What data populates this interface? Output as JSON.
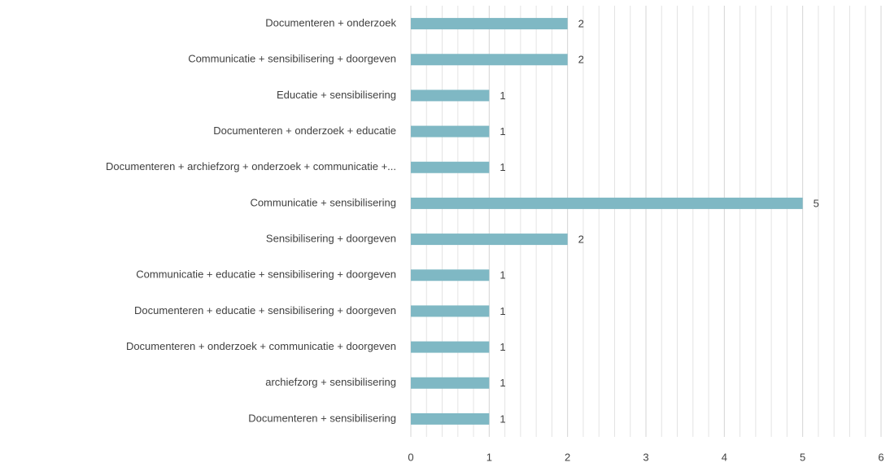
{
  "chart_data": {
    "type": "hbar",
    "categories": [
      "Documenteren + onderzoek",
      "Communicatie + sensibilisering + doorgeven",
      "Educatie + sensibilisering",
      "Documenteren + onderzoek + educatie",
      "Documenteren + archiefzorg + onderzoek + communicatie +...",
      "Communicatie + sensibilisering",
      "Sensibilisering + doorgeven",
      "Communicatie + educatie + sensibilisering + doorgeven",
      "Documenteren + educatie + sensibilisering + doorgeven",
      "Documenteren + onderzoek + communicatie + doorgeven",
      "archiefzorg + sensibilisering",
      "Documenteren + sensibilisering"
    ],
    "values": [
      2,
      2,
      1,
      1,
      1,
      5,
      2,
      1,
      1,
      1,
      1,
      1
    ],
    "color": "#7fb8c4",
    "xlim": [
      0,
      6
    ],
    "xticks": [
      0,
      1,
      2,
      3,
      4,
      5,
      6
    ],
    "xminorticks": [
      0.2,
      0.4,
      0.6,
      0.8,
      1.2,
      1.4,
      1.6,
      1.8,
      2.2,
      2.4,
      2.6,
      2.8,
      3.2,
      3.4,
      3.6,
      3.8,
      4.2,
      4.4,
      4.6,
      4.8,
      5.2,
      5.4,
      5.6,
      5.8
    ],
    "grid": true,
    "data_labels": true
  }
}
